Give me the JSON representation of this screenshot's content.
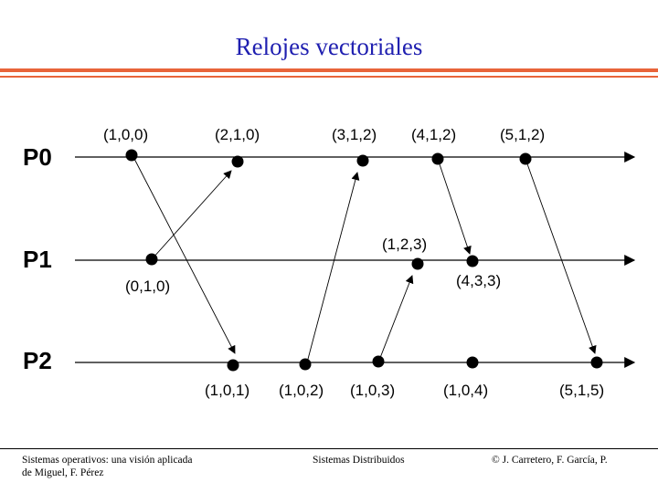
{
  "title": "Relojes vectoriales",
  "processes": [
    "P0",
    "P1",
    "P2"
  ],
  "p0_labels": [
    "(1,0,0)",
    "(2,1,0)",
    "(3,1,2)",
    "(4,1,2)",
    "(5,1,2)"
  ],
  "p1_labels": [
    "(0,1,0)",
    "(1,2,3)",
    "(4,3,3)"
  ],
  "p2_labels": [
    "(1,0,1)",
    "(1,0,2)",
    "(1,0,3)",
    "(1,0,4)",
    "(5,1,5)"
  ],
  "colors": {
    "title": "#1f1fb0",
    "rule": "#e8643a"
  },
  "footer": {
    "left_line1": "Sistemas operativos: una visión aplicada",
    "left_line2": "de Miguel, F. Pérez",
    "center": "Sistemas Distribuidos",
    "right": "© J. Carretero, F. García, P."
  }
}
